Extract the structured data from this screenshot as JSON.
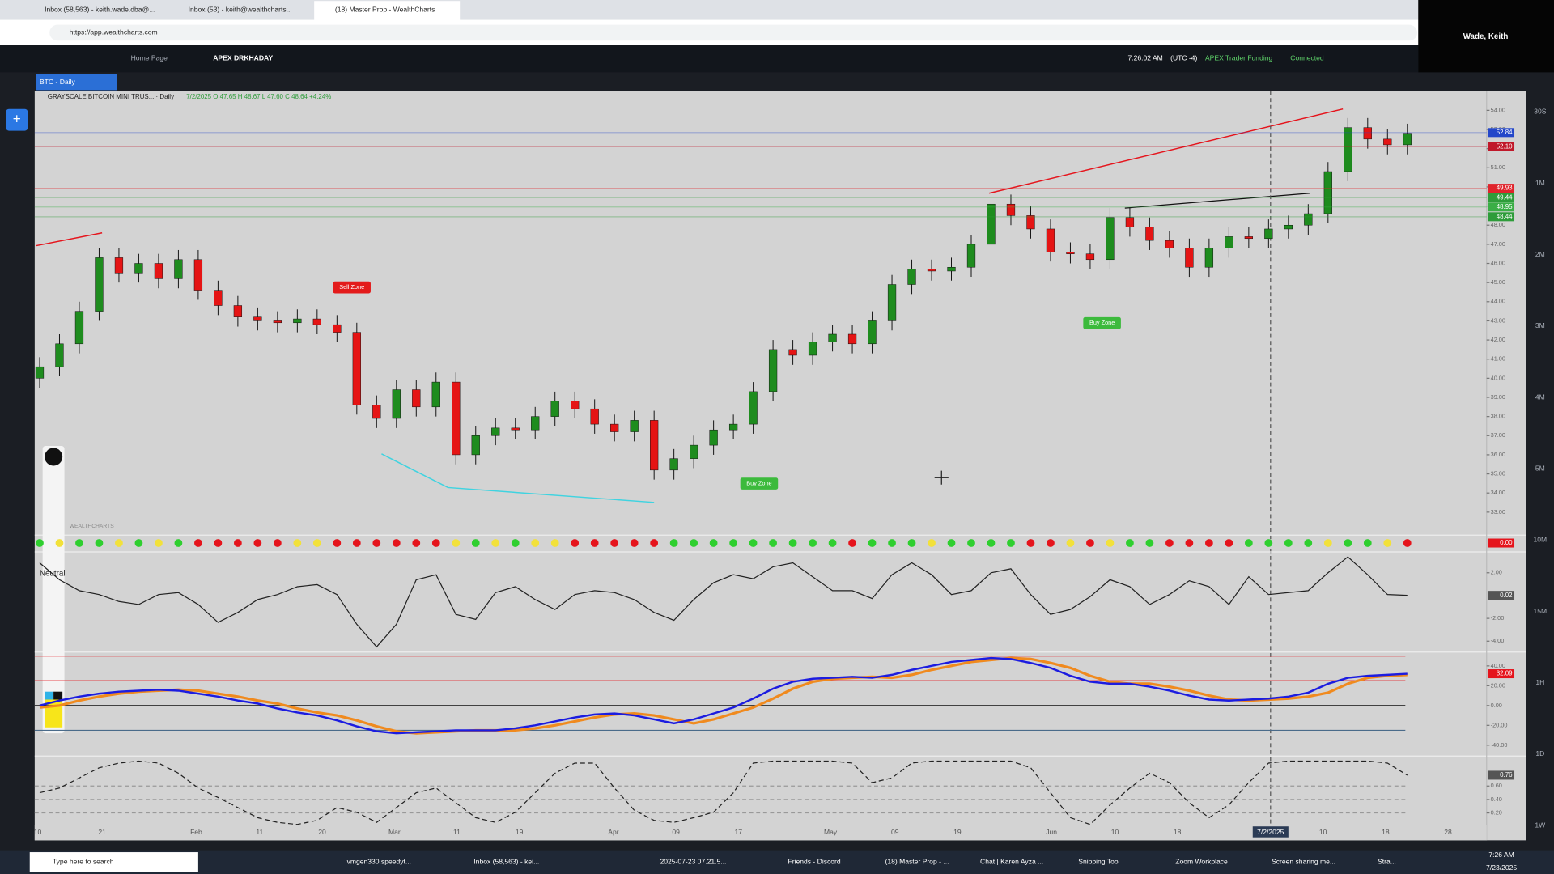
{
  "browser": {
    "tabs": [
      "Inbox (58,563) - keith.wade.dba@...",
      "Inbox (53) - keith@wealthcharts...",
      "(18) Master Prop - WealthCharts"
    ],
    "url": "https://app.wealthcharts.com"
  },
  "user": "Wade, Keith",
  "app_header": {
    "tabs": [
      "Home Page",
      "APEX DRKHADAY"
    ],
    "clock": "7:26:02 AM",
    "timezone": "(UTC -4)",
    "account": "APEX Trader Funding",
    "status": "Connected"
  },
  "chart_tab": "BTC - Daily",
  "symbol_header": "GRAYSCALE BITCOIN MINI TRUS... · Daily",
  "ohlc_header": "7/2/2025  O 47.65  H 48.67  L 47.60  C 48.64  +4.24%",
  "watermark": "WEALTHCHARTS",
  "timeframes": [
    "30S",
    "1M",
    "2M",
    "3M",
    "4M",
    "5M",
    "10M",
    "15M",
    "1H",
    "1D",
    "1W"
  ],
  "x_axis_labels": [
    "10",
    "21",
    "Feb",
    "11",
    "20",
    "Mar",
    "11",
    "19",
    "Apr",
    "09",
    "17",
    "May",
    "09",
    "19",
    "Jun",
    "10",
    "18",
    "7/2/2025",
    "10",
    "18",
    "28"
  ],
  "taskbar": {
    "search": "Type here to search",
    "apps": [
      "vmgen330.speedyt...",
      "Inbox (58,563) - kei...",
      "2025-07-23 07.21.5...",
      "Friends - Discord",
      "(18) Master Prop - ...",
      "Chat | Karen Ayza ...",
      "Snipping Tool",
      "Zoom Workplace",
      "Screen sharing me...",
      "Stra..."
    ],
    "time": "7:26 AM",
    "date": "7/23/2025"
  },
  "chart_data": [
    {
      "type": "candlestick",
      "up_color": "#1e8c1e",
      "down_color": "#e51414",
      "annotations": [
        "Sell Zone",
        "Buy Zone",
        "Buy Zone"
      ],
      "candles": [
        [
          40.0,
          41.1,
          39.5,
          40.6
        ],
        [
          40.6,
          42.3,
          40.1,
          41.8
        ],
        [
          41.8,
          44.0,
          41.3,
          43.5
        ],
        [
          43.5,
          46.8,
          43.0,
          46.3
        ],
        [
          46.3,
          46.8,
          45.0,
          45.5
        ],
        [
          45.5,
          46.5,
          45.0,
          46.0
        ],
        [
          46.0,
          46.5,
          44.7,
          45.2
        ],
        [
          45.2,
          46.7,
          44.7,
          46.2
        ],
        [
          46.2,
          46.7,
          44.1,
          44.6
        ],
        [
          44.6,
          45.1,
          43.3,
          43.8
        ],
        [
          43.8,
          44.3,
          42.7,
          43.2
        ],
        [
          43.2,
          43.7,
          42.5,
          43.0
        ],
        [
          43.0,
          43.5,
          42.4,
          42.9
        ],
        [
          42.9,
          43.6,
          42.4,
          43.1
        ],
        [
          43.1,
          43.6,
          42.3,
          42.8
        ],
        [
          42.8,
          43.3,
          41.9,
          42.4
        ],
        [
          42.4,
          42.9,
          38.1,
          38.6
        ],
        [
          38.6,
          39.1,
          37.4,
          37.9
        ],
        [
          37.9,
          39.9,
          37.4,
          39.4
        ],
        [
          39.4,
          39.9,
          38.0,
          38.5
        ],
        [
          38.5,
          40.3,
          38.0,
          39.8
        ],
        [
          39.8,
          40.3,
          35.5,
          36.0
        ],
        [
          36.0,
          37.5,
          35.5,
          37.0
        ],
        [
          37.0,
          37.9,
          36.5,
          37.4
        ],
        [
          37.4,
          37.9,
          36.8,
          37.3
        ],
        [
          37.3,
          38.5,
          36.8,
          38.0
        ],
        [
          38.0,
          39.3,
          37.5,
          38.8
        ],
        [
          38.8,
          39.3,
          37.9,
          38.4
        ],
        [
          38.4,
          38.9,
          37.1,
          37.6
        ],
        [
          37.6,
          38.1,
          36.7,
          37.2
        ],
        [
          37.2,
          38.3,
          36.7,
          37.8
        ],
        [
          37.8,
          38.3,
          34.7,
          35.2
        ],
        [
          35.2,
          36.3,
          34.7,
          35.8
        ],
        [
          35.8,
          37.0,
          35.3,
          36.5
        ],
        [
          36.5,
          37.8,
          36.0,
          37.3
        ],
        [
          37.3,
          38.1,
          36.8,
          37.6
        ],
        [
          37.6,
          39.8,
          37.1,
          39.3
        ],
        [
          39.3,
          42.0,
          38.8,
          41.5
        ],
        [
          41.5,
          42.0,
          40.7,
          41.2
        ],
        [
          41.2,
          42.4,
          40.7,
          41.9
        ],
        [
          41.9,
          42.8,
          41.4,
          42.3
        ],
        [
          42.3,
          42.8,
          41.3,
          41.8
        ],
        [
          41.8,
          43.5,
          41.3,
          43.0
        ],
        [
          43.0,
          45.4,
          42.5,
          44.9
        ],
        [
          44.9,
          46.2,
          44.4,
          45.7
        ],
        [
          45.7,
          46.2,
          45.1,
          45.6
        ],
        [
          45.6,
          46.3,
          45.1,
          45.8
        ],
        [
          45.8,
          47.5,
          45.3,
          47.0
        ],
        [
          47.0,
          49.6,
          46.5,
          49.1
        ],
        [
          49.1,
          49.6,
          48.0,
          48.5
        ],
        [
          48.5,
          49.0,
          47.3,
          47.8
        ],
        [
          47.8,
          48.3,
          46.1,
          46.6
        ],
        [
          46.6,
          47.1,
          46.0,
          46.5
        ],
        [
          46.5,
          47.0,
          45.7,
          46.2
        ],
        [
          46.2,
          48.9,
          45.7,
          48.4
        ],
        [
          48.4,
          48.9,
          47.4,
          47.9
        ],
        [
          47.9,
          48.4,
          46.7,
          47.2
        ],
        [
          47.2,
          47.7,
          46.3,
          46.8
        ],
        [
          46.8,
          47.3,
          45.3,
          45.8
        ],
        [
          45.8,
          47.3,
          45.3,
          46.8
        ],
        [
          46.8,
          47.9,
          46.3,
          47.4
        ],
        [
          47.4,
          47.9,
          46.8,
          47.3
        ],
        [
          47.3,
          48.3,
          46.8,
          47.8
        ],
        [
          47.8,
          48.5,
          47.3,
          48.0
        ],
        [
          48.0,
          49.1,
          47.5,
          48.6
        ],
        [
          48.6,
          51.3,
          48.1,
          50.8
        ],
        [
          50.8,
          53.6,
          50.3,
          53.1
        ],
        [
          53.1,
          53.6,
          52.0,
          52.5
        ],
        [
          52.5,
          53.0,
          51.7,
          52.2
        ],
        [
          52.2,
          53.3,
          51.7,
          52.8
        ]
      ],
      "ylim": [
        31.8,
        54.9
      ],
      "yticks": [
        {
          "value": 54,
          "label": "54.00"
        },
        {
          "value": 53,
          "label": "53.00"
        },
        {
          "value": 52,
          "label": "52.00"
        },
        {
          "value": 51,
          "label": "51.00"
        },
        {
          "value": 50,
          "label": "50.00"
        },
        {
          "value": 49,
          "label": "49.00"
        },
        {
          "value": 48,
          "label": "48.00"
        },
        {
          "value": 47,
          "label": "47.00"
        },
        {
          "value": 46,
          "label": "46.00"
        },
        {
          "value": 45,
          "label": "45.00"
        },
        {
          "value": 44,
          "label": "44.00"
        },
        {
          "value": 43,
          "label": "43.00"
        },
        {
          "value": 42,
          "label": "42.00"
        },
        {
          "value": 41,
          "label": "41.00"
        },
        {
          "value": 40,
          "label": "40.00"
        },
        {
          "value": 39,
          "label": "39.00"
        },
        {
          "value": 38,
          "label": "38.00"
        },
        {
          "value": 37,
          "label": "37.00"
        },
        {
          "value": 36,
          "label": "36.00"
        },
        {
          "value": 35,
          "label": "35.00"
        },
        {
          "value": 34,
          "label": "34.00"
        },
        {
          "value": 33,
          "label": "33.00"
        }
      ],
      "price_badges": [
        {
          "value": 52.84,
          "color": "#2447c9"
        },
        {
          "value": 52.1,
          "label": "52.10",
          "color": "#c0182a"
        },
        {
          "value": 49.93,
          "color": "#e0242c"
        },
        {
          "value": 49.44,
          "color": "#2e9c3a"
        },
        {
          "value": 48.95,
          "color": "#3aae46"
        },
        {
          "value": 48.44,
          "color": "#2e9c3a"
        }
      ]
    },
    {
      "type": "dots",
      "palette": {
        "g": "#2fcf2f",
        "y": "#f2e13a",
        "r": "#e5141c"
      },
      "values": [
        "g",
        "y",
        "g",
        "g",
        "y",
        "g",
        "y",
        "g",
        "r",
        "r",
        "r",
        "r",
        "r",
        "y",
        "y",
        "r",
        "r",
        "r",
        "r",
        "r",
        "r",
        "y",
        "g",
        "y",
        "g",
        "y",
        "y",
        "r",
        "r",
        "r",
        "r",
        "r",
        "g",
        "g",
        "g",
        "g",
        "g",
        "g",
        "g",
        "g",
        "g",
        "r",
        "g",
        "g",
        "g",
        "y",
        "g",
        "g",
        "g",
        "g",
        "r",
        "r",
        "y",
        "r",
        "y",
        "g",
        "g",
        "r",
        "r",
        "r",
        "r",
        "g",
        "g",
        "g",
        "g",
        "y",
        "g",
        "g",
        "y",
        "r"
      ],
      "badge": "0.00",
      "badge_color": "#e5141c"
    },
    {
      "type": "line",
      "label": "Neutral",
      "color": "#222222",
      "values": [
        2.87,
        1.39,
        0.43,
        0.09,
        -0.52,
        -0.78,
        0.09,
        0.26,
        -0.78,
        -2.35,
        -1.48,
        -0.35,
        0.09,
        0.78,
        0.96,
        0.09,
        -2.52,
        -4.5,
        -2.52,
        1.39,
        1.83,
        -1.65,
        -2.09,
        0.26,
        0.78,
        -0.35,
        -1.22,
        0.09,
        0.43,
        0.26,
        -0.35,
        -1.48,
        -2.17,
        -0.35,
        1.13,
        1.83,
        1.48,
        2.52,
        2.87,
        1.65,
        0.43,
        0.43,
        -0.26,
        1.83,
        2.87,
        1.83,
        0.09,
        0.43,
        2.0,
        2.35,
        0.09,
        -1.65,
        -1.22,
        -0.09,
        1.39,
        0.78,
        -0.78,
        0.09,
        1.3,
        0.78,
        -0.78,
        1.65,
        0.09,
        0.26,
        0.43,
        2.0,
        3.39,
        1.83,
        0.09,
        0.02
      ],
      "ylim": [
        -4.78,
        3.74
      ],
      "yticks": [
        {
          "value": 2,
          "label": "2.00"
        },
        {
          "value": -2,
          "label": "-2.00"
        },
        {
          "value": -4,
          "label": "-4.00"
        }
      ],
      "badge_color": "#555555"
    },
    {
      "type": "line",
      "series": [
        {
          "color": "#f08a1e",
          "values": [
            -2,
            0,
            5,
            9,
            12,
            14,
            15,
            16,
            15,
            12,
            9,
            5,
            2,
            -3,
            -7,
            -10,
            -15,
            -21,
            -26,
            -28,
            -27,
            -26,
            -25,
            -25,
            -25,
            -23,
            -20,
            -16,
            -12,
            -9,
            -8,
            -10,
            -14,
            -18,
            -14,
            -8,
            -2,
            7,
            17,
            24,
            27,
            28,
            29,
            28,
            31,
            36,
            40,
            44,
            46,
            48,
            47,
            43,
            38,
            30,
            24,
            22,
            22,
            19,
            15,
            10,
            6,
            5,
            6,
            7,
            9,
            13,
            22,
            28,
            30,
            31
          ]
        },
        {
          "color": "#1c1ce0",
          "values": [
            0,
            5,
            9,
            12,
            14,
            15,
            16,
            15,
            12,
            9,
            5,
            2,
            -3,
            -7,
            -10,
            -15,
            -21,
            -26,
            -28,
            -27,
            -26,
            -25,
            -25,
            -25,
            -23,
            -20,
            -16,
            -12,
            -9,
            -8,
            -10,
            -14,
            -18,
            -14,
            -8,
            -2,
            7,
            17,
            24,
            27,
            28,
            29,
            28,
            31,
            36,
            40,
            44,
            46,
            48,
            47,
            43,
            38,
            30,
            24,
            22,
            22,
            19,
            15,
            10,
            6,
            5,
            6,
            7,
            9,
            13,
            22,
            28,
            30,
            31,
            32.09
          ]
        }
      ],
      "levels": [
        {
          "value": 50,
          "color": "#e5141c"
        },
        {
          "value": 25,
          "color": "#e5141c"
        },
        {
          "value": 0,
          "color": "#111111"
        },
        {
          "value": -25,
          "color": "#4a6b8a"
        }
      ],
      "ylim": [
        -50,
        52
      ],
      "yticks": [
        {
          "value": 40,
          "label": "40.00"
        },
        {
          "value": 20,
          "label": "20.00"
        },
        {
          "value": 0,
          "label": "0.00"
        },
        {
          "value": -20,
          "label": "-20.00"
        },
        {
          "value": -40,
          "label": "-40.00"
        }
      ],
      "badge_color": "#e5141c"
    },
    {
      "type": "line",
      "dashed": true,
      "color": "#222222",
      "values": [
        0.5,
        0.57,
        0.72,
        0.87,
        0.94,
        0.97,
        0.94,
        0.79,
        0.57,
        0.43,
        0.28,
        0.13,
        0.06,
        0.03,
        0.09,
        0.28,
        0.21,
        0.06,
        0.28,
        0.5,
        0.57,
        0.35,
        0.13,
        0.06,
        0.21,
        0.5,
        0.79,
        0.94,
        0.94,
        0.57,
        0.24,
        0.09,
        0.06,
        0.13,
        0.21,
        0.5,
        0.94,
        0.97,
        0.97,
        0.97,
        0.97,
        0.94,
        0.65,
        0.72,
        0.94,
        0.97,
        0.97,
        0.97,
        0.97,
        0.97,
        0.87,
        0.5,
        0.13,
        0.03,
        0.32,
        0.57,
        0.79,
        0.65,
        0.35,
        0.13,
        0.32,
        0.65,
        0.94,
        0.97,
        0.97,
        0.97,
        0.97,
        0.97,
        0.94,
        0.76
      ],
      "ylim": [
        0,
        1
      ],
      "yticks": [
        {
          "value": 0.6,
          "label": "0.60"
        },
        {
          "value": 0.4,
          "label": "0.40"
        },
        {
          "value": 0.2,
          "label": "0.20"
        }
      ],
      "badge_color": "#555555"
    }
  ]
}
